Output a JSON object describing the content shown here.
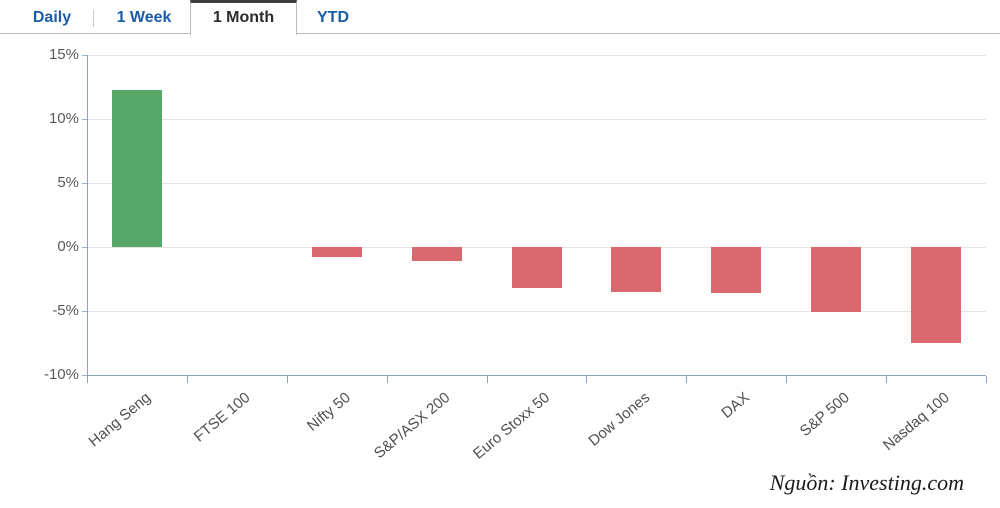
{
  "tabs": {
    "items": [
      {
        "label": "Daily",
        "active": false
      },
      {
        "label": "1 Week",
        "active": false
      },
      {
        "label": "1 Month",
        "active": true
      },
      {
        "label": "YTD",
        "active": false
      }
    ]
  },
  "chart_data": {
    "type": "bar",
    "title": "",
    "xlabel": "",
    "ylabel": "",
    "categories": [
      "Hang Seng",
      "FTSE 100",
      "Nifty 50",
      "S&P/ASX 200",
      "Euro Stoxx 50",
      "Dow Jones",
      "DAX",
      "S&P 500",
      "Nasdaq 100"
    ],
    "values": [
      12.3,
      0,
      -0.8,
      -1.1,
      -3.2,
      -3.5,
      -3.6,
      -5.1,
      -7.5
    ],
    "value_unit": "%",
    "ylim": [
      -10,
      15
    ],
    "yticks": [
      15,
      10,
      5,
      0,
      -5,
      -10
    ],
    "ytick_labels": [
      "15%",
      "10%",
      "5%",
      "0%",
      "-5%",
      "-10%"
    ],
    "grid": true,
    "legend": "none",
    "positive_color": "#57a868",
    "negative_color": "#d9696e"
  },
  "source": {
    "text": "Nguồn: Investing.com"
  }
}
